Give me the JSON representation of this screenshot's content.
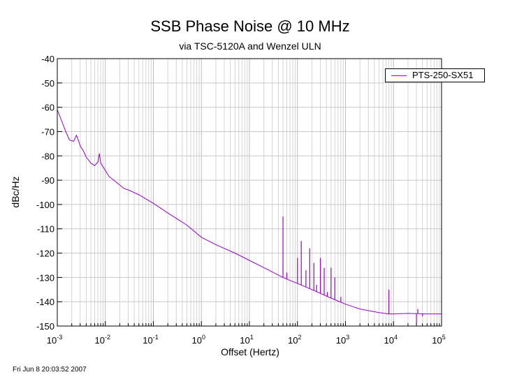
{
  "chart_data": {
    "type": "line",
    "title": "SSB Phase Noise @ 10 MHz",
    "subtitle": "via TSC-5120A and Wenzel ULN",
    "xlabel": "Offset (Hertz)",
    "ylabel": "dBc/Hz",
    "x_scale": "log",
    "xlim": [
      0.001,
      100000
    ],
    "ylim": [
      -150,
      -40
    ],
    "x_ticks": [
      {
        "base": "10",
        "exp": "-3",
        "value": 0.001
      },
      {
        "base": "10",
        "exp": "-2",
        "value": 0.01
      },
      {
        "base": "10",
        "exp": "-1",
        "value": 0.1
      },
      {
        "base": "10",
        "exp": "0",
        "value": 1
      },
      {
        "base": "10",
        "exp": "1",
        "value": 10
      },
      {
        "base": "10",
        "exp": "2",
        "value": 100
      },
      {
        "base": "10",
        "exp": "3",
        "value": 1000
      },
      {
        "base": "10",
        "exp": "4",
        "value": 10000
      },
      {
        "base": "10",
        "exp": "5",
        "value": 100000
      }
    ],
    "y_ticks": [
      "-40",
      "-50",
      "-60",
      "-70",
      "-80",
      "-90",
      "-100",
      "-110",
      "-120",
      "-130",
      "-140",
      "-150"
    ],
    "grid": true,
    "legend": "top-right",
    "series": [
      {
        "name": "PTS-250-SX51",
        "color": "#9900cc",
        "x": [
          0.001,
          0.0012,
          0.0015,
          0.0018,
          0.0022,
          0.0025,
          0.0028,
          0.003,
          0.0035,
          0.004,
          0.005,
          0.006,
          0.007,
          0.0075,
          0.008,
          0.01,
          0.012,
          0.015,
          0.02,
          0.025,
          0.03,
          0.05,
          0.1,
          0.2,
          0.5,
          1,
          2,
          5,
          10,
          20,
          50,
          100,
          200,
          500,
          1000,
          2000,
          5000,
          8000,
          10000,
          20000,
          50000,
          100000
        ],
        "y": [
          -61,
          -65,
          -70,
          -73.5,
          -74,
          -71.5,
          -74,
          -76,
          -78,
          -80.5,
          -83,
          -84,
          -82.5,
          -79,
          -83,
          -86,
          -88.5,
          -90,
          -92,
          -93.5,
          -94,
          -96,
          -99.5,
          -103.5,
          -108.5,
          -113.5,
          -116.5,
          -120,
          -123,
          -126,
          -130,
          -132.5,
          -135,
          -138.5,
          -141,
          -143,
          -144.5,
          -145,
          -145,
          -144.8,
          -145,
          -145
        ]
      }
    ],
    "spurs": [
      {
        "x": 50,
        "y": -105
      },
      {
        "x": 60,
        "y": -128
      },
      {
        "x": 100,
        "y": -122
      },
      {
        "x": 120,
        "y": -115
      },
      {
        "x": 150,
        "y": -127
      },
      {
        "x": 180,
        "y": -118
      },
      {
        "x": 220,
        "y": -124
      },
      {
        "x": 250,
        "y": -133
      },
      {
        "x": 300,
        "y": -122
      },
      {
        "x": 360,
        "y": -126
      },
      {
        "x": 420,
        "y": -136
      },
      {
        "x": 500,
        "y": -126
      },
      {
        "x": 600,
        "y": -130
      },
      {
        "x": 700,
        "y": -140
      },
      {
        "x": 800,
        "y": -138
      },
      {
        "x": 8000,
        "y": -135
      },
      {
        "x": 30000,
        "y": -149
      },
      {
        "x": 32000,
        "y": -143
      },
      {
        "x": 40000,
        "y": -146
      }
    ]
  },
  "footer": {
    "timestamp": "Fri Jun  8 20:03:52 2007"
  }
}
